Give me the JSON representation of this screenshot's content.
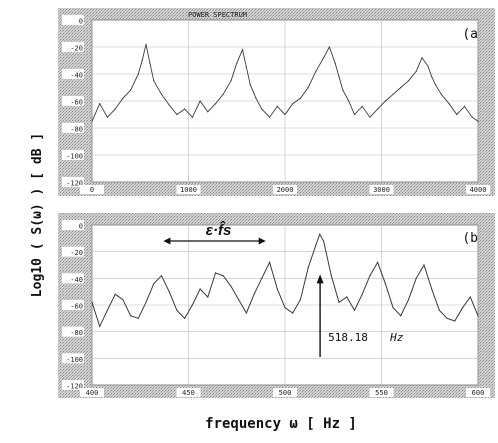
{
  "figure": {
    "ylabel": "Log10 ( S(ω) )  [ dB ]",
    "xlabel": "frequency  ω [ Hz ]"
  },
  "chart_data": [
    {
      "panel": "(a",
      "type": "line",
      "title": "POWER SPECTRUM",
      "xlim": [
        0,
        4000
      ],
      "ylim": [
        -120,
        0
      ],
      "xticks": [
        0,
        1000,
        2000,
        3000,
        4000
      ],
      "yticks": [
        0,
        -20,
        -40,
        -60,
        -80,
        -100,
        -120
      ],
      "grid": true,
      "series": [
        {
          "x": [
            0,
            80,
            160,
            240,
            320,
            400,
            480,
            520,
            560,
            600,
            640,
            720,
            800,
            880,
            960,
            1040,
            1120,
            1200,
            1280,
            1360,
            1440,
            1500,
            1560,
            1600,
            1640,
            1700,
            1760,
            1840,
            1920,
            2000,
            2080,
            2160,
            2240,
            2320,
            2400,
            2460,
            2520,
            2560,
            2600,
            2660,
            2720,
            2800,
            2880,
            2960,
            3040,
            3120,
            3200,
            3280,
            3360,
            3420,
            3480,
            3520,
            3560,
            3620,
            3700,
            3780,
            3860,
            3940,
            4000
          ],
          "y": [
            -75,
            -62,
            -72,
            -66,
            -58,
            -52,
            -40,
            -30,
            -18,
            -32,
            -45,
            -55,
            -63,
            -70,
            -66,
            -72,
            -60,
            -68,
            -62,
            -55,
            -45,
            -32,
            -22,
            -35,
            -48,
            -58,
            -66,
            -72,
            -64,
            -70,
            -62,
            -58,
            -50,
            -38,
            -28,
            -20,
            -32,
            -42,
            -52,
            -60,
            -70,
            -64,
            -72,
            -66,
            -60,
            -55,
            -50,
            -45,
            -38,
            -28,
            -34,
            -42,
            -48,
            -55,
            -62,
            -70,
            -64,
            -72,
            -75
          ]
        }
      ]
    },
    {
      "panel": "(b",
      "type": "line",
      "xlim": [
        400,
        600
      ],
      "ylim": [
        -120,
        0
      ],
      "xticks": [
        400,
        450,
        500,
        550,
        600
      ],
      "yticks": [
        0,
        -20,
        -40,
        -60,
        -80,
        -100,
        -120
      ],
      "grid": true,
      "annotations": [
        {
          "text": "518.18",
          "unit": "Hz",
          "x": 518.18,
          "y": -7
        },
        {
          "text": "ε·f̂s",
          "x_start": 437,
          "x_end": 490,
          "y": -12
        }
      ],
      "series": [
        {
          "x": [
            400,
            404,
            408,
            412,
            416,
            420,
            424,
            428,
            432,
            436,
            440,
            444,
            448,
            452,
            456,
            460,
            464,
            468,
            472,
            476,
            480,
            484,
            488,
            492,
            496,
            500,
            504,
            508,
            512,
            516,
            518,
            520,
            524,
            528,
            532,
            536,
            540,
            544,
            548,
            552,
            556,
            560,
            564,
            568,
            572,
            576,
            580,
            584,
            588,
            592,
            596,
            600
          ],
          "y": [
            -58,
            -76,
            -64,
            -52,
            -56,
            -68,
            -70,
            -58,
            -44,
            -38,
            -50,
            -64,
            -70,
            -60,
            -48,
            -54,
            -36,
            -38,
            -46,
            -56,
            -66,
            -52,
            -40,
            -28,
            -48,
            -62,
            -66,
            -56,
            -32,
            -15,
            -7,
            -12,
            -38,
            -58,
            -54,
            -64,
            -52,
            -38,
            -28,
            -44,
            -62,
            -68,
            -56,
            -40,
            -30,
            -48,
            -64,
            -70,
            -72,
            -62,
            -54,
            -68
          ]
        }
      ]
    }
  ]
}
